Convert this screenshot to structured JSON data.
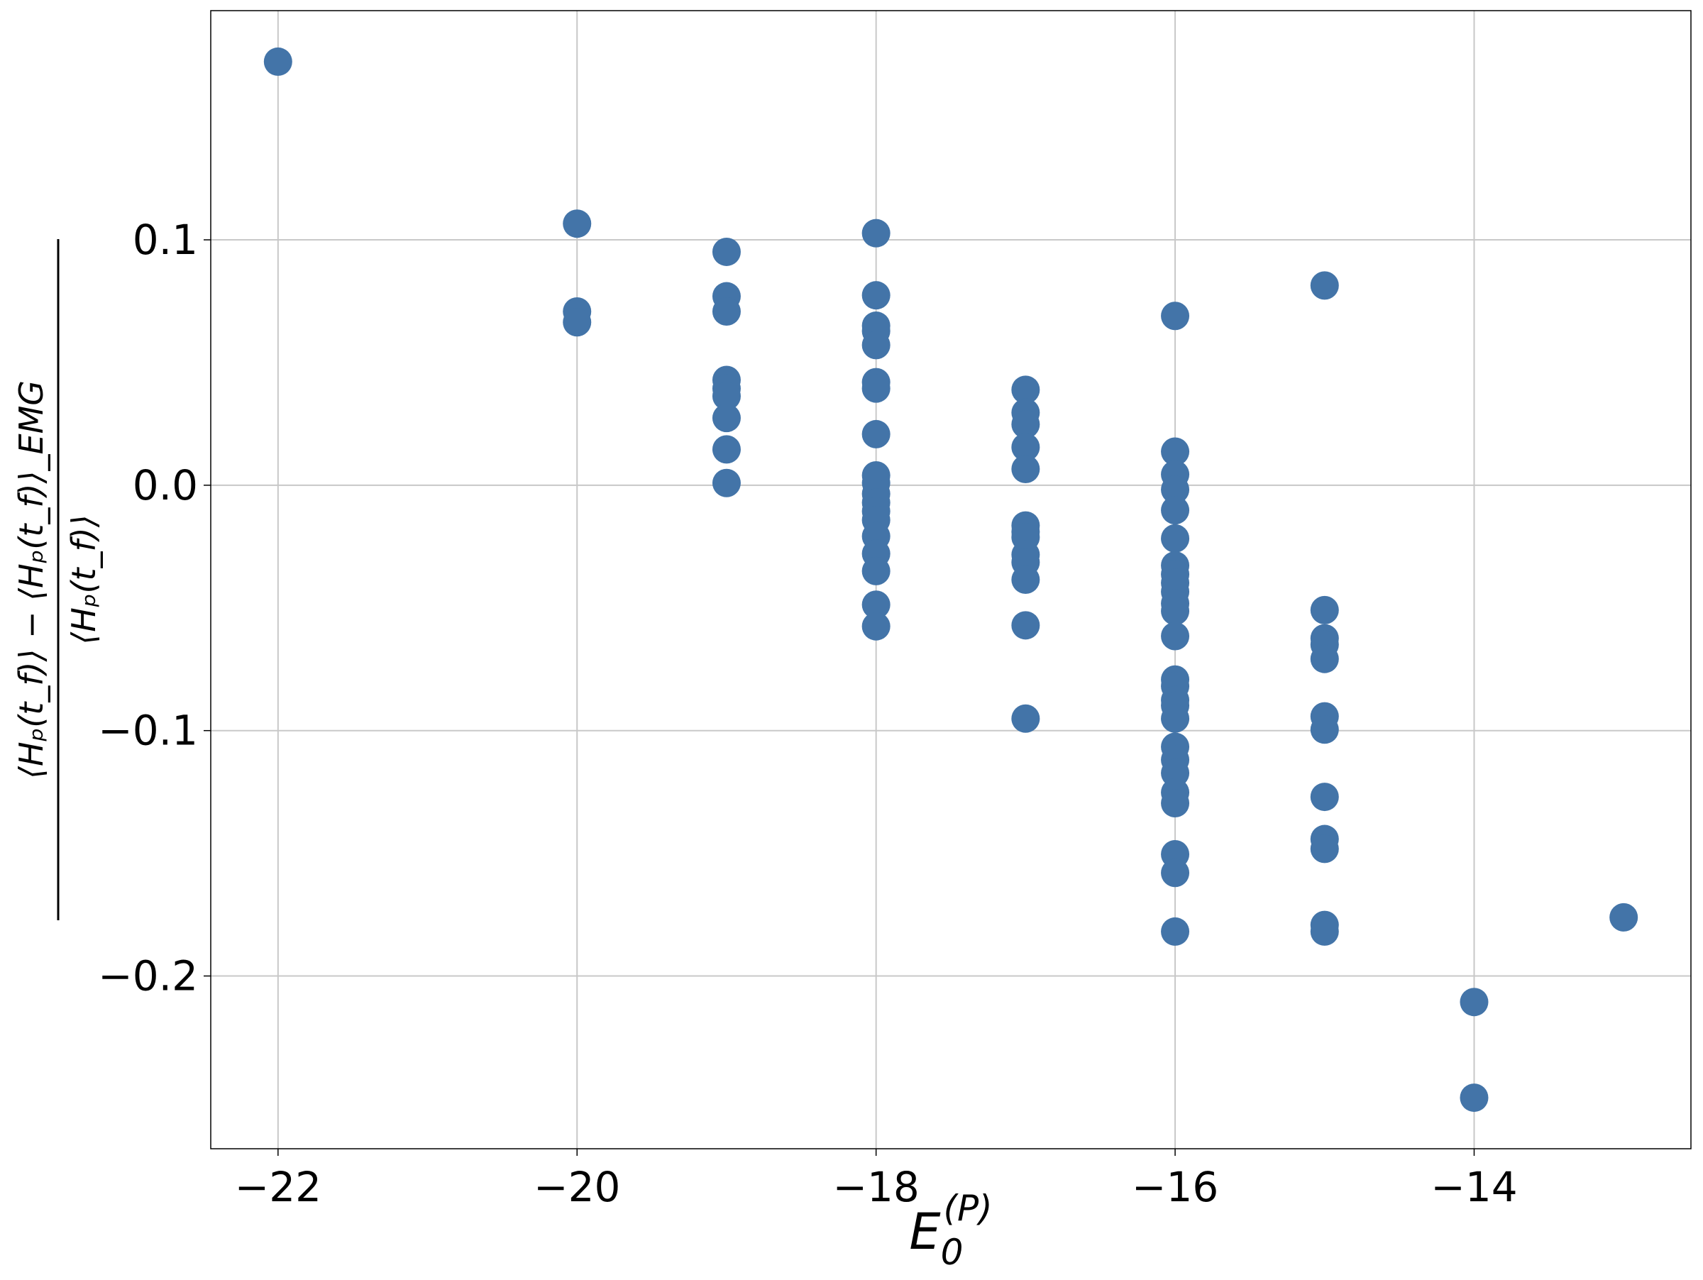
{
  "chart_data": {
    "type": "scatter",
    "x_label": {
      "base": "E",
      "sub": "0",
      "sup": "(P)"
    },
    "y_label": {
      "numerator": "⟨Hₚ(t_f)⟩ − ⟨Hₚ(t_f)⟩_EMG",
      "denominator": "⟨Hₚ(t_f)⟩"
    },
    "xlim": [
      -22.45,
      -12.55
    ],
    "ylim": [
      -0.2704,
      0.1934
    ],
    "xticks": [
      {
        "value": -22,
        "label": "−22"
      },
      {
        "value": -20,
        "label": "−20"
      },
      {
        "value": -18,
        "label": "−18"
      },
      {
        "value": -16,
        "label": "−16"
      },
      {
        "value": -14,
        "label": "−14"
      }
    ],
    "yticks": [
      {
        "value": -0.2,
        "label": "−0.2"
      },
      {
        "value": -0.1,
        "label": "−0.1"
      },
      {
        "value": 0,
        "label": "0.0"
      },
      0.1
    ],
    "grid": true,
    "series": [
      {
        "color": "#4374a8",
        "x": [
          -22,
          -20,
          -20,
          -20,
          -19,
          -19,
          -19,
          -19,
          -19,
          -19,
          -19,
          -19,
          -19,
          -18,
          -18,
          -18,
          -18,
          -18,
          -18,
          -18,
          -18,
          -18,
          -18,
          -18,
          -18,
          -18,
          -18,
          -18,
          -18,
          -18,
          -18,
          -18,
          -17,
          -17,
          -17,
          -17,
          -17,
          -17,
          -17,
          -17,
          -17,
          -17,
          -17,
          -17,
          -17,
          -16,
          -16,
          -16,
          -16,
          -16,
          -16,
          -16,
          -16,
          -16,
          -16,
          -16,
          -16,
          -16,
          -16,
          -16,
          -16,
          -16,
          -16,
          -16,
          -16,
          -16,
          -16,
          -16,
          -16,
          -16,
          -16,
          -15,
          -15,
          -15,
          -15,
          -15,
          -15,
          -15,
          -15,
          -15,
          -15,
          -15,
          -15,
          -14,
          -14,
          -13
        ],
        "y": [
          0.1726,
          0.1066,
          0.0708,
          0.0664,
          0.0951,
          0.077,
          0.0708,
          0.0429,
          0.0394,
          0.0363,
          0.0274,
          0.0146,
          0.0009,
          0.1027,
          0.0774,
          0.065,
          0.0628,
          0.0571,
          0.042,
          0.0394,
          0.0208,
          0.004,
          0.0009,
          -0.0035,
          -0.0071,
          -0.0106,
          -0.0142,
          -0.0208,
          -0.0279,
          -0.035,
          -0.0487,
          -0.0575,
          0.0389,
          0.0296,
          0.0248,
          0.0155,
          0.0066,
          -0.0164,
          -0.019,
          -0.0212,
          -0.0283,
          -0.0314,
          -0.0385,
          -0.0571,
          -0.0951,
          0.069,
          0.0137,
          0.0044,
          -0.0018,
          -0.0102,
          -0.0217,
          -0.0327,
          -0.0363,
          -0.0398,
          -0.0434,
          -0.0482,
          -0.0513,
          -0.0615,
          -0.0792,
          -0.0819,
          -0.0876,
          -0.0898,
          -0.0951,
          -0.1066,
          -0.1119,
          -0.1173,
          -0.1252,
          -0.1296,
          -0.1504,
          -0.158,
          -0.1819,
          0.0814,
          -0.0509,
          -0.0624,
          -0.065,
          -0.0708,
          -0.0942,
          -0.0996,
          -0.127,
          -0.1442,
          -0.1482,
          -0.1792,
          -0.1819,
          -0.2106,
          -0.2496,
          -0.1761
        ]
      }
    ]
  }
}
